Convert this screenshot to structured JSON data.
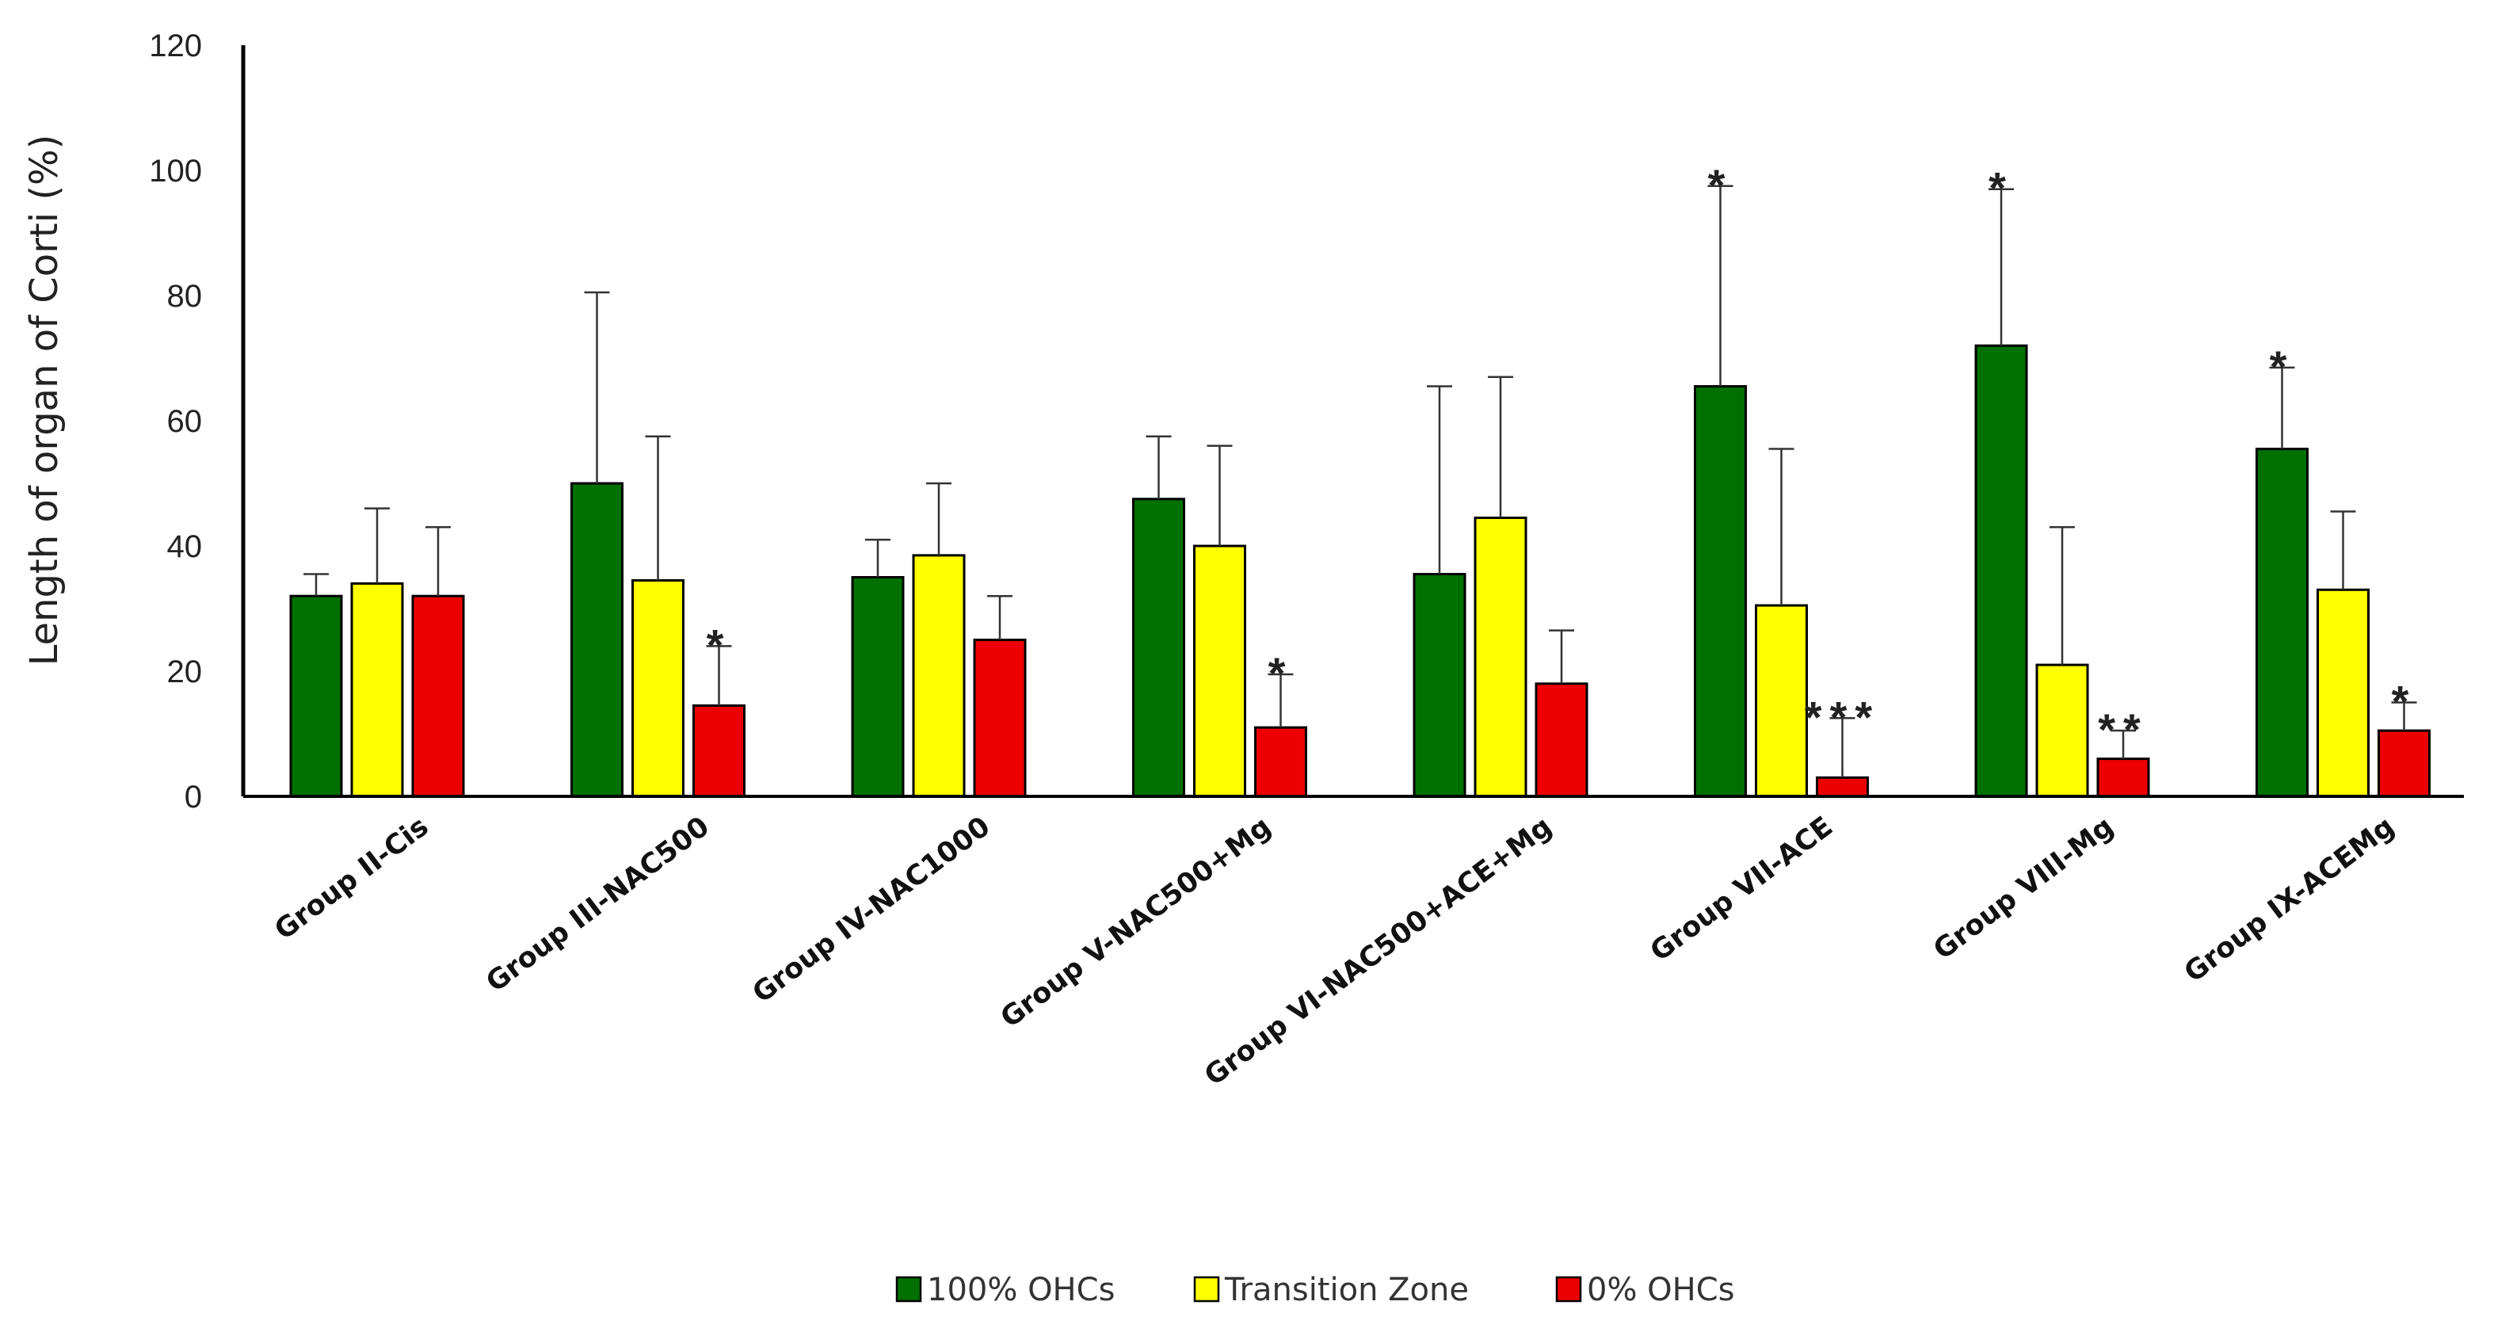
{
  "chart_data": {
    "type": "bar",
    "title": "",
    "xlabel": "",
    "ylabel": "Length of organ of Corti (%)",
    "ylim": [
      0,
      120
    ],
    "yticks": [
      "0",
      "20",
      "40",
      "60",
      "80",
      "100",
      "120"
    ],
    "grid": false,
    "legend_position": "bottom-center",
    "categories": [
      "Group II-Cis",
      "Group III-NAC500",
      "Group IV-NAC1000",
      "Group V-NAC500+Mg",
      "Group VI-NAC500+ACE+Mg",
      "Group VII-ACE",
      "Group VIII-Mg",
      "Group IX-ACEMg"
    ],
    "series": [
      {
        "name": "100% OHCs",
        "color": "#007000",
        "values": [
          32,
          50,
          35,
          47.5,
          35.5,
          65.5,
          72,
          55.5
        ],
        "errors": [
          3.5,
          30.5,
          6,
          10,
          30,
          32,
          25,
          13
        ],
        "significance": [
          "",
          "",
          "",
          "",
          "",
          "*",
          "*",
          "*"
        ]
      },
      {
        "name": "Transition Zone",
        "color": "#ffff00",
        "values": [
          34,
          34.5,
          38.5,
          40,
          44.5,
          30.5,
          21,
          33
        ],
        "errors": [
          12,
          23,
          11.5,
          16,
          22.5,
          25,
          22,
          12.5
        ],
        "significance": [
          "",
          "",
          "",
          "",
          "",
          "",
          "",
          ""
        ]
      },
      {
        "name": "0% OHCs",
        "color": "#ee0000",
        "values": [
          32,
          14.5,
          25,
          11,
          18,
          3,
          6,
          10.5
        ],
        "errors": [
          11,
          9.5,
          7,
          8.5,
          8.5,
          9.5,
          4.5,
          4.5
        ],
        "significance": [
          "",
          "*",
          "",
          "*",
          "",
          "***",
          "**",
          "*"
        ]
      }
    ]
  }
}
